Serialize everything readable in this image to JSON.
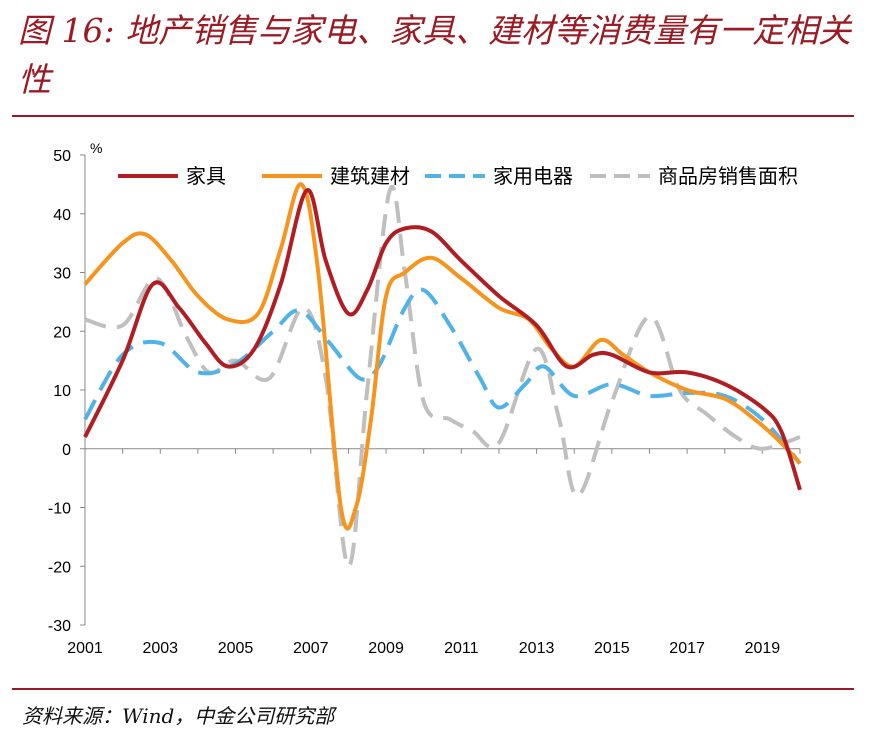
{
  "title": "图 16: 地产销售与家电、家具、建材等消费量有一定相关性",
  "source": "资料来源：Wind，中金公司研究部",
  "chart_data": {
    "type": "line",
    "unit_label": "%",
    "xlim": [
      2001,
      2020
    ],
    "ylim": [
      -30,
      50
    ],
    "x_ticks": [
      2001,
      2003,
      2005,
      2007,
      2009,
      2011,
      2013,
      2015,
      2017,
      2019
    ],
    "y_ticks": [
      -30,
      -20,
      -10,
      0,
      10,
      20,
      30,
      40,
      50
    ],
    "grid": false,
    "legend_position": "top",
    "series": [
      {
        "name": "家具",
        "color": "#b01e23",
        "dash": "solid",
        "points": [
          [
            2001,
            2
          ],
          [
            2002,
            15
          ],
          [
            2002.8,
            28
          ],
          [
            2003.5,
            24
          ],
          [
            2004.2,
            18
          ],
          [
            2004.8,
            14
          ],
          [
            2005.5,
            17
          ],
          [
            2006.2,
            28
          ],
          [
            2006.9,
            44
          ],
          [
            2007.4,
            32
          ],
          [
            2008,
            23
          ],
          [
            2008.5,
            27
          ],
          [
            2009,
            35
          ],
          [
            2009.5,
            37.5
          ],
          [
            2010.2,
            37
          ],
          [
            2011,
            32
          ],
          [
            2012,
            26
          ],
          [
            2013,
            21
          ],
          [
            2013.8,
            14
          ],
          [
            2014.5,
            16
          ],
          [
            2015,
            16
          ],
          [
            2016,
            13
          ],
          [
            2017,
            13
          ],
          [
            2018,
            11
          ],
          [
            2019,
            7
          ],
          [
            2019.5,
            3
          ],
          [
            2020,
            -7
          ]
        ]
      },
      {
        "name": "建筑建材",
        "color": "#f7941d",
        "dash": "solid",
        "points": [
          [
            2001,
            28
          ],
          [
            2002,
            35
          ],
          [
            2002.6,
            36.5
          ],
          [
            2003.3,
            32
          ],
          [
            2004,
            26
          ],
          [
            2004.8,
            22
          ],
          [
            2005.6,
            23
          ],
          [
            2006.2,
            34
          ],
          [
            2006.75,
            45
          ],
          [
            2007.2,
            30
          ],
          [
            2007.8,
            -10
          ],
          [
            2008.2,
            -10
          ],
          [
            2008.6,
            5
          ],
          [
            2009,
            26
          ],
          [
            2009.5,
            30
          ],
          [
            2010.2,
            32.5
          ],
          [
            2011,
            29
          ],
          [
            2012,
            24
          ],
          [
            2012.8,
            22
          ],
          [
            2013.4,
            17
          ],
          [
            2014,
            14
          ],
          [
            2014.7,
            18.5
          ],
          [
            2015.3,
            16
          ],
          [
            2016,
            13
          ],
          [
            2017,
            10
          ],
          [
            2018,
            8.5
          ],
          [
            2018.8,
            5
          ],
          [
            2019.5,
            1
          ],
          [
            2020,
            -2.5
          ]
        ]
      },
      {
        "name": "家用电器",
        "color": "#4fb3e8",
        "dash": "dashed",
        "points": [
          [
            2001,
            5
          ],
          [
            2002,
            16
          ],
          [
            2003,
            18
          ],
          [
            2004,
            13
          ],
          [
            2005,
            14.5
          ],
          [
            2006,
            20
          ],
          [
            2006.7,
            23.5
          ],
          [
            2007.5,
            18
          ],
          [
            2008.3,
            12
          ],
          [
            2008.8,
            14
          ],
          [
            2009.5,
            24
          ],
          [
            2010,
            27
          ],
          [
            2010.7,
            21
          ],
          [
            2011.5,
            12
          ],
          [
            2012,
            7
          ],
          [
            2012.7,
            11
          ],
          [
            2013.2,
            14
          ],
          [
            2014,
            9
          ],
          [
            2015,
            11
          ],
          [
            2016,
            9
          ],
          [
            2017,
            9.5
          ],
          [
            2018,
            9
          ],
          [
            2019,
            5
          ],
          [
            2020,
            -2.5
          ]
        ]
      },
      {
        "name": "商品房销售面积",
        "color": "#bfbfbf",
        "dash": "dashed",
        "points": [
          [
            2001,
            22
          ],
          [
            2002,
            21
          ],
          [
            2002.9,
            29
          ],
          [
            2003.7,
            19
          ],
          [
            2004.3,
            13
          ],
          [
            2005,
            15
          ],
          [
            2005.9,
            12
          ],
          [
            2006.8,
            24
          ],
          [
            2007.4,
            12
          ],
          [
            2008,
            -20
          ],
          [
            2008.5,
            10
          ],
          [
            2009.1,
            44
          ],
          [
            2009.5,
            30
          ],
          [
            2010,
            8
          ],
          [
            2010.7,
            5
          ],
          [
            2011.3,
            3
          ],
          [
            2012,
            1
          ],
          [
            2013,
            17
          ],
          [
            2013.6,
            5
          ],
          [
            2014.1,
            -8
          ],
          [
            2015,
            8
          ],
          [
            2016,
            22.5
          ],
          [
            2016.8,
            10
          ],
          [
            2017.5,
            6
          ],
          [
            2018.3,
            2
          ],
          [
            2019,
            0
          ],
          [
            2020,
            2
          ]
        ]
      }
    ]
  }
}
